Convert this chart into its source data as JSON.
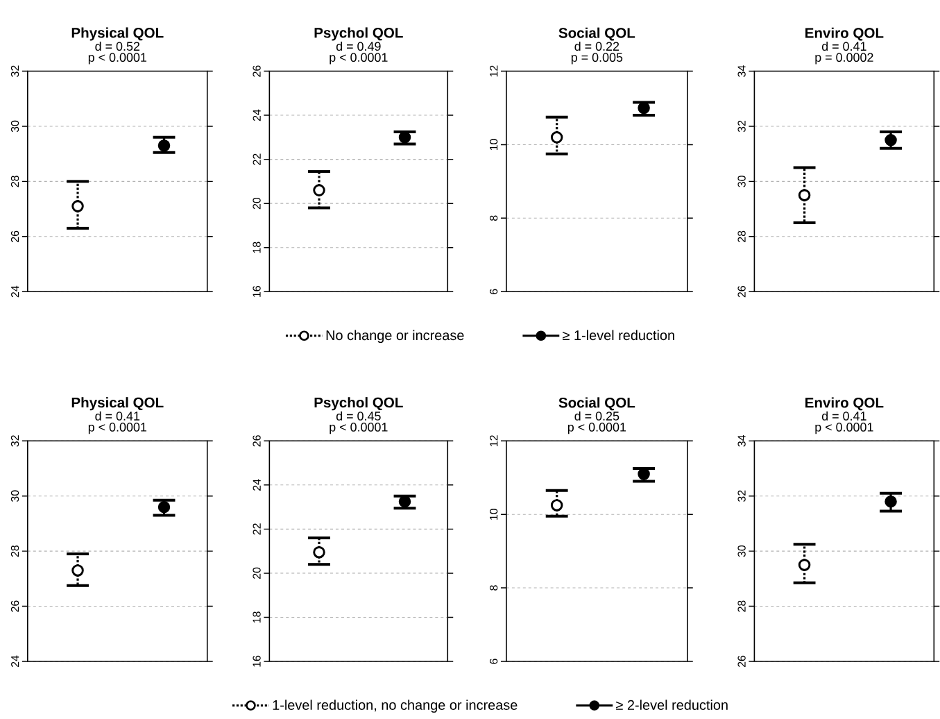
{
  "chart_data": [
    {
      "type": "scatter",
      "title": "Physical QOL",
      "subtitle": "d = 0.52",
      "annotations": [
        "p < 0.0001"
      ],
      "categories": [
        null,
        null
      ],
      "ylim": [
        24,
        32
      ],
      "yticks": [
        24,
        26,
        28,
        30,
        32
      ],
      "grid": "y",
      "marker": "circle",
      "legend": "bottom",
      "series": [
        {
          "name": "No change or increase",
          "color": "#000000",
          "line_style": "dotted",
          "values": [
            27.1,
            null
          ],
          "errors": [
            [
              26.3,
              28.0
            ],
            null
          ]
        },
        {
          "name": "≥ 1-level reduction",
          "color": "#000000",
          "line_style": "solid",
          "values": [
            null,
            29.3
          ],
          "errors": [
            null,
            [
              29.05,
              29.6
            ]
          ]
        }
      ]
    },
    {
      "type": "scatter",
      "title": "Psychol QOL",
      "subtitle": "d = 0.49",
      "annotations": [
        "p < 0.0001"
      ],
      "categories": [
        null,
        null
      ],
      "ylim": [
        16,
        26
      ],
      "yticks": [
        16,
        18,
        20,
        22,
        24,
        26
      ],
      "grid": "y",
      "marker": "circle",
      "series": [
        {
          "color": "#000000",
          "line_style": "dotted",
          "values": [
            20.6,
            null
          ],
          "errors": [
            [
              19.8,
              21.45
            ],
            null
          ]
        },
        {
          "color": "#000000",
          "line_style": "solid",
          "values": [
            null,
            23.0
          ],
          "errors": [
            null,
            [
              22.7,
              23.25
            ]
          ]
        }
      ]
    },
    {
      "type": "scatter",
      "title": "Social QOL",
      "subtitle": "d = 0.22",
      "annotations": [
        "p = 0.005"
      ],
      "categories": [
        null,
        null
      ],
      "ylim": [
        6,
        12
      ],
      "yticks": [
        6,
        8,
        10,
        12
      ],
      "grid": "y",
      "marker": "circle",
      "series": [
        {
          "color": "#000000",
          "line_style": "dotted",
          "values": [
            10.2,
            null
          ],
          "errors": [
            [
              9.75,
              10.75
            ],
            null
          ]
        },
        {
          "color": "#000000",
          "line_style": "solid",
          "values": [
            null,
            11.0
          ],
          "errors": [
            null,
            [
              10.8,
              11.15
            ]
          ]
        }
      ]
    },
    {
      "type": "scatter",
      "title": "Enviro QOL",
      "subtitle": "d = 0.41",
      "annotations": [
        "p = 0.0002"
      ],
      "categories": [
        null,
        null
      ],
      "ylim": [
        26,
        34
      ],
      "yticks": [
        26,
        28,
        30,
        32,
        34
      ],
      "grid": "y",
      "marker": "circle",
      "series": [
        {
          "color": "#000000",
          "line_style": "dotted",
          "values": [
            29.5,
            null
          ],
          "errors": [
            [
              28.5,
              30.5
            ],
            null
          ]
        },
        {
          "color": "#000000",
          "line_style": "solid",
          "values": [
            null,
            31.5
          ],
          "errors": [
            null,
            [
              31.2,
              31.8
            ]
          ]
        }
      ]
    },
    {
      "type": "scatter",
      "title": "Physical QOL",
      "subtitle": "d = 0.41",
      "annotations": [
        "p < 0.0001"
      ],
      "categories": [
        null,
        null
      ],
      "ylim": [
        24,
        32
      ],
      "yticks": [
        24,
        26,
        28,
        30,
        32
      ],
      "grid": "y",
      "marker": "circle",
      "legend": "bottom",
      "series": [
        {
          "name": "1-level reduction, no change or increase",
          "color": "#000000",
          "line_style": "dotted",
          "values": [
            27.3,
            null
          ],
          "errors": [
            [
              26.75,
              27.9
            ],
            null
          ]
        },
        {
          "name": "≥ 2-level reduction",
          "color": "#000000",
          "line_style": "solid",
          "values": [
            null,
            29.6
          ],
          "errors": [
            null,
            [
              29.3,
              29.85
            ]
          ]
        }
      ]
    },
    {
      "type": "scatter",
      "title": "Psychol QOL",
      "subtitle": "d = 0.45",
      "annotations": [
        "p < 0.0001"
      ],
      "categories": [
        null,
        null
      ],
      "ylim": [
        16,
        26
      ],
      "yticks": [
        16,
        18,
        20,
        22,
        24,
        26
      ],
      "grid": "y",
      "marker": "circle",
      "series": [
        {
          "color": "#000000",
          "line_style": "dotted",
          "values": [
            20.95,
            null
          ],
          "errors": [
            [
              20.4,
              21.6
            ],
            null
          ]
        },
        {
          "color": "#000000",
          "line_style": "solid",
          "values": [
            null,
            23.25
          ],
          "errors": [
            null,
            [
              22.95,
              23.5
            ]
          ]
        }
      ]
    },
    {
      "type": "scatter",
      "title": "Social QOL",
      "subtitle": "d = 0.25",
      "annotations": [
        "p < 0.0001"
      ],
      "categories": [
        null,
        null
      ],
      "ylim": [
        6,
        12
      ],
      "yticks": [
        6,
        8,
        10,
        12
      ],
      "grid": "y",
      "marker": "circle",
      "series": [
        {
          "color": "#000000",
          "line_style": "dotted",
          "values": [
            10.25,
            null
          ],
          "errors": [
            [
              9.95,
              10.65
            ],
            null
          ]
        },
        {
          "color": "#000000",
          "line_style": "solid",
          "values": [
            null,
            11.1
          ],
          "errors": [
            null,
            [
              10.9,
              11.25
            ]
          ]
        }
      ]
    },
    {
      "type": "scatter",
      "title": "Enviro QOL",
      "subtitle": "d = 0.41",
      "annotations": [
        "p < 0.0001"
      ],
      "categories": [
        null,
        null
      ],
      "ylim": [
        26,
        34
      ],
      "yticks": [
        26,
        28,
        30,
        32,
        34
      ],
      "grid": "y",
      "marker": "circle",
      "series": [
        {
          "color": "#000000",
          "line_style": "dotted",
          "values": [
            29.5,
            null
          ],
          "errors": [
            [
              28.85,
              30.25
            ],
            null
          ]
        },
        {
          "color": "#000000",
          "line_style": "solid",
          "values": [
            null,
            31.8
          ],
          "errors": [
            null,
            [
              31.45,
              32.1
            ]
          ]
        }
      ]
    }
  ]
}
